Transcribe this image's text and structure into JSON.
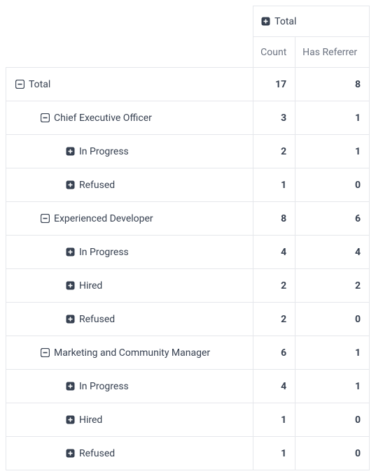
{
  "colors": {
    "border": "#e5e7eb",
    "text": "#374151",
    "muted": "#6b7280",
    "icon": "#374151",
    "background": "#ffffff"
  },
  "header": {
    "total_label": "Total",
    "count_label": "Count",
    "referrer_label": "Has Referrer"
  },
  "rows": [
    {
      "label": "Total",
      "indent": 0,
      "expanded": true,
      "count": 17,
      "referrer": 8
    },
    {
      "label": "Chief Executive Officer",
      "indent": 1,
      "expanded": true,
      "count": 3,
      "referrer": 1
    },
    {
      "label": "In Progress",
      "indent": 2,
      "expanded": false,
      "count": 2,
      "referrer": 1
    },
    {
      "label": "Refused",
      "indent": 2,
      "expanded": false,
      "count": 1,
      "referrer": 0
    },
    {
      "label": "Experienced Developer",
      "indent": 1,
      "expanded": true,
      "count": 8,
      "referrer": 6
    },
    {
      "label": "In Progress",
      "indent": 2,
      "expanded": false,
      "count": 4,
      "referrer": 4
    },
    {
      "label": "Hired",
      "indent": 2,
      "expanded": false,
      "count": 2,
      "referrer": 2
    },
    {
      "label": "Refused",
      "indent": 2,
      "expanded": false,
      "count": 2,
      "referrer": 0
    },
    {
      "label": "Marketing and Community Manager",
      "indent": 1,
      "expanded": true,
      "count": 6,
      "referrer": 1
    },
    {
      "label": "In Progress",
      "indent": 2,
      "expanded": false,
      "count": 4,
      "referrer": 1
    },
    {
      "label": "Hired",
      "indent": 2,
      "expanded": false,
      "count": 1,
      "referrer": 0
    },
    {
      "label": "Refused",
      "indent": 2,
      "expanded": false,
      "count": 1,
      "referrer": 0
    }
  ]
}
